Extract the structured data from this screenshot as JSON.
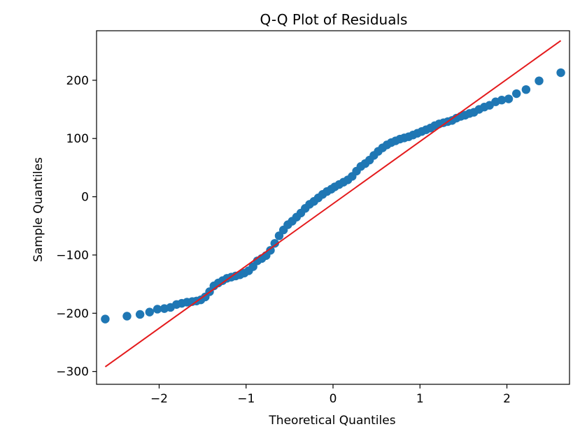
{
  "chart_data": {
    "type": "scatter",
    "title": "Q-Q Plot of Residuals",
    "xlabel": "Theoretical Quantiles",
    "ylabel": "Sample Quantiles",
    "xlim": [
      -2.72,
      2.72
    ],
    "ylim": [
      -322,
      285
    ],
    "x_ticks": [
      -2,
      -1,
      0,
      1,
      2
    ],
    "y_ticks": [
      -300,
      -200,
      -100,
      0,
      100,
      200
    ],
    "x_tick_labels": [
      "−2",
      "−1",
      "0",
      "1",
      "2"
    ],
    "y_tick_labels": [
      "−300",
      "−200",
      "−100",
      "0",
      "100",
      "200"
    ],
    "grid": false,
    "legend": false,
    "marker_color": "#1f77b4",
    "line_color": "#e41a1c",
    "reference_line": {
      "x": [
        -2.62,
        2.62
      ],
      "y": [
        -292,
        268
      ]
    },
    "points": {
      "x": [
        -2.62,
        -2.37,
        -2.22,
        -2.11,
        -2.02,
        -1.94,
        -1.87,
        -1.8,
        -1.74,
        -1.68,
        -1.62,
        -1.57,
        -1.52,
        -1.47,
        -1.42,
        -1.37,
        -1.32,
        -1.27,
        -1.22,
        -1.17,
        -1.12,
        -1.07,
        -1.02,
        -0.97,
        -0.92,
        -0.87,
        -0.82,
        -0.77,
        -0.72,
        -0.67,
        -0.62,
        -0.57,
        -0.52,
        -0.47,
        -0.42,
        -0.37,
        -0.32,
        -0.27,
        -0.22,
        -0.17,
        -0.12,
        -0.07,
        -0.02,
        0.02,
        0.07,
        0.12,
        0.17,
        0.22,
        0.27,
        0.32,
        0.37,
        0.42,
        0.47,
        0.52,
        0.57,
        0.62,
        0.67,
        0.72,
        0.77,
        0.82,
        0.87,
        0.92,
        0.97,
        1.02,
        1.07,
        1.12,
        1.17,
        1.22,
        1.27,
        1.32,
        1.37,
        1.42,
        1.47,
        1.52,
        1.57,
        1.62,
        1.68,
        1.74,
        1.8,
        1.87,
        1.94,
        2.02,
        2.11,
        2.22,
        2.37,
        2.62
      ],
      "y": [
        -210,
        -205,
        -202,
        -198,
        -193,
        -192,
        -190,
        -185,
        -183,
        -181,
        -180,
        -179,
        -177,
        -172,
        -163,
        -153,
        -148,
        -144,
        -140,
        -138,
        -136,
        -134,
        -131,
        -127,
        -120,
        -110,
        -106,
        -101,
        -92,
        -80,
        -67,
        -57,
        -48,
        -42,
        -35,
        -28,
        -20,
        -13,
        -8,
        -2,
        4,
        9,
        13,
        17,
        21,
        25,
        29,
        35,
        44,
        52,
        57,
        63,
        71,
        78,
        84,
        89,
        93,
        96,
        99,
        101,
        103,
        106,
        109,
        112,
        115,
        118,
        122,
        125,
        127,
        129,
        131,
        135,
        138,
        140,
        143,
        145,
        150,
        154,
        157,
        163,
        166,
        168,
        177,
        184,
        199,
        213
      ]
    }
  }
}
